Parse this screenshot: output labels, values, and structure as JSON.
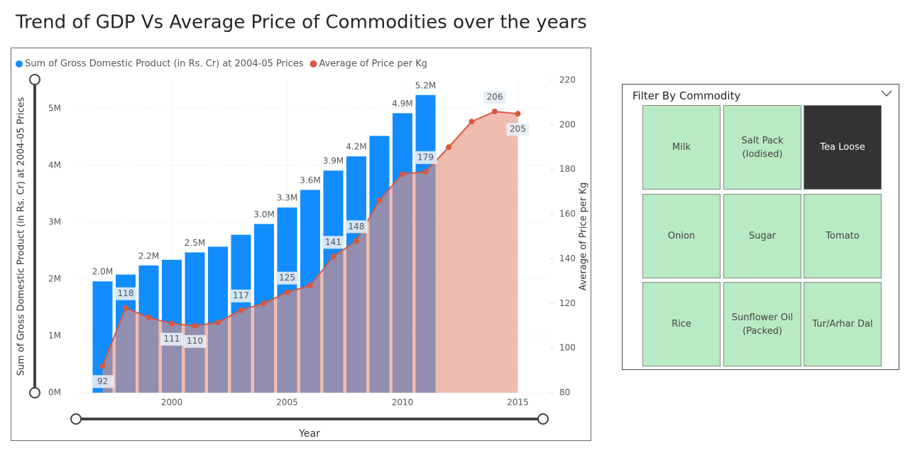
{
  "chart_data": {
    "type": "bar-line",
    "title": "Trend of GDP Vs Average Price of Commodities over the years",
    "x_label": "Year",
    "y_label": "Sum of Gross Domestic Product (in Rs. Cr) at 2004-05 Prices",
    "y2_label": "Average of Price per Kg",
    "x": [
      1997,
      1998,
      1999,
      2000,
      2001,
      2002,
      2003,
      2004,
      2005,
      2006,
      2007,
      2008,
      2009,
      2010,
      2011,
      2012,
      2013,
      2014,
      2015
    ],
    "xlim": [
      1996,
      2016.4
    ],
    "xticks": [
      2000,
      2005,
      2010,
      2015
    ],
    "ylim": [
      0,
      5500000
    ],
    "yticks": [
      {
        "value": 0,
        "label": "0M"
      },
      {
        "value": 1000000,
        "label": "1M"
      },
      {
        "value": 2000000,
        "label": "2M"
      },
      {
        "value": 3000000,
        "label": "3M"
      },
      {
        "value": 4000000,
        "label": "4M"
      },
      {
        "value": 5000000,
        "label": "5M"
      }
    ],
    "y2lim": [
      80,
      220
    ],
    "y2ticks": [
      80,
      100,
      120,
      140,
      160,
      180,
      200,
      220
    ],
    "grid": true,
    "legend": "top-left",
    "series": [
      {
        "name": "Sum of Gross Domestic Product (in Rs. Cr) at 2004-05 Prices",
        "color": "#118dff",
        "kind": "bar",
        "values": [
          1960000,
          2080000,
          2240000,
          2340000,
          2470000,
          2570000,
          2780000,
          2970000,
          3260000,
          3570000,
          3910000,
          4160000,
          4520000,
          4920000,
          5240000,
          null,
          null,
          null,
          null
        ],
        "value_labels": [
          "2.0M",
          null,
          "2.2M",
          null,
          "2.5M",
          null,
          null,
          "3.0M",
          "3.3M",
          "3.6M",
          "3.9M",
          "4.2M",
          null,
          "4.9M",
          "5.2M",
          null,
          null,
          null,
          null
        ]
      },
      {
        "name": "Average of Price per Kg",
        "color": "#d9573f",
        "kind": "area-line",
        "axis": "y2",
        "values": [
          92,
          118,
          113.7,
          111,
          110,
          111.5,
          117,
          120.1,
          125,
          128,
          141,
          148,
          166.2,
          178,
          179,
          190,
          201.5,
          206,
          205
        ],
        "value_labels": [
          "92",
          "118",
          null,
          "111",
          "110",
          null,
          "117",
          null,
          "125",
          null,
          "141",
          "148",
          null,
          null,
          "179",
          null,
          null,
          "206",
          "205"
        ]
      }
    ]
  },
  "slicer": {
    "title": "Filter By Commodity",
    "items": [
      {
        "label": "Milk",
        "selected": false
      },
      {
        "label": "Salt Pack (Iodised)",
        "selected": false
      },
      {
        "label": "Tea Loose",
        "selected": true
      },
      {
        "label": "Onion",
        "selected": false
      },
      {
        "label": "Sugar",
        "selected": false
      },
      {
        "label": "Tomato",
        "selected": false
      },
      {
        "label": "Rice",
        "selected": false
      },
      {
        "label": "Sunflower Oil (Packed)",
        "selected": false
      },
      {
        "label": "Tur/Arhar Dal",
        "selected": false
      }
    ]
  }
}
